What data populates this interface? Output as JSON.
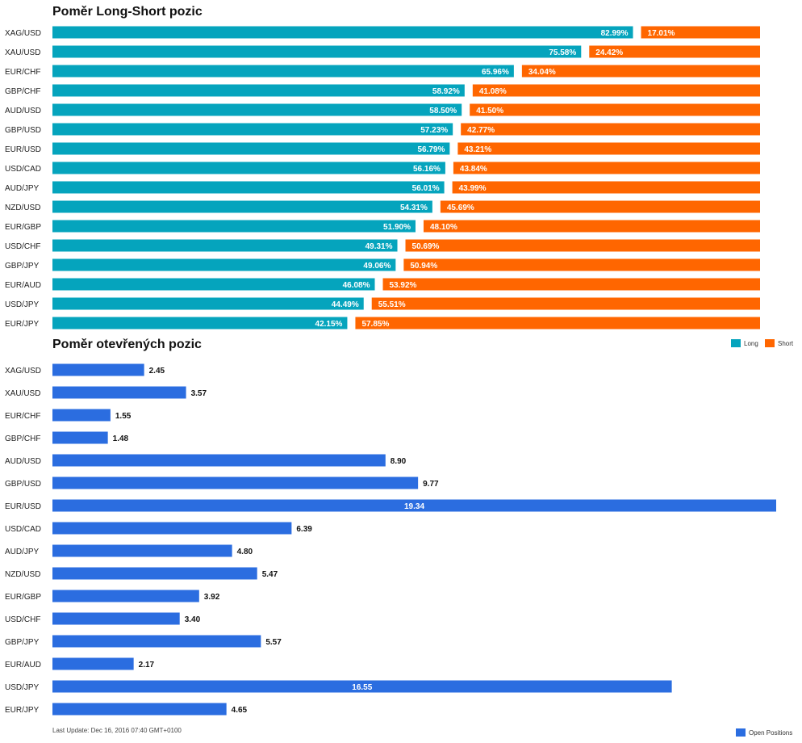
{
  "colors": {
    "long": "#05a4bd",
    "short": "#ff6600",
    "open": "#2b6de0"
  },
  "titles": {
    "long_short": "Poměr Long-Short pozic",
    "open": "Poměr otevřených pozic"
  },
  "legend": {
    "long": "Long",
    "short": "Short",
    "open": "Open Positions"
  },
  "footer": "Last Update: Dec 16, 2016 07:40 GMT+0100",
  "chart_data": [
    {
      "type": "bar",
      "orientation": "horizontal",
      "stacked": true,
      "title": "Poměr Long-Short pozic",
      "categories": [
        "XAG/USD",
        "XAU/USD",
        "EUR/CHF",
        "GBP/CHF",
        "AUD/USD",
        "GBP/USD",
        "EUR/USD",
        "USD/CAD",
        "AUD/JPY",
        "NZD/USD",
        "EUR/GBP",
        "USD/CHF",
        "GBP/JPY",
        "EUR/AUD",
        "USD/JPY",
        "EUR/JPY"
      ],
      "series": [
        {
          "name": "Long",
          "values": [
            82.99,
            75.58,
            65.96,
            58.92,
            58.5,
            57.23,
            56.79,
            56.16,
            56.01,
            54.31,
            51.9,
            49.31,
            49.06,
            46.08,
            44.49,
            42.15
          ],
          "labels": [
            "82.99%",
            "75.58%",
            "65.96%",
            "58.92%",
            "58.50%",
            "57.23%",
            "56.79%",
            "56.16%",
            "56.01%",
            "54.31%",
            "51.90%",
            "49.31%",
            "49.06%",
            "46.08%",
            "44.49%",
            "42.15%"
          ]
        },
        {
          "name": "Short",
          "values": [
            17.01,
            24.42,
            34.04,
            41.08,
            41.5,
            42.77,
            43.21,
            43.84,
            43.99,
            45.69,
            48.1,
            50.69,
            50.94,
            53.92,
            55.51,
            57.85
          ],
          "labels": [
            "17.01%",
            "24.42%",
            "34.04%",
            "41.08%",
            "41.50%",
            "42.77%",
            "43.21%",
            "43.84%",
            "43.99%",
            "45.69%",
            "48.10%",
            "50.69%",
            "50.94%",
            "53.92%",
            "55.51%",
            "57.85%"
          ]
        }
      ],
      "legend_position": "bottom-right"
    },
    {
      "type": "bar",
      "orientation": "horizontal",
      "title": "Poměr otevřených pozic",
      "categories": [
        "XAG/USD",
        "XAU/USD",
        "EUR/CHF",
        "GBP/CHF",
        "AUD/USD",
        "GBP/USD",
        "EUR/USD",
        "USD/CAD",
        "AUD/JPY",
        "NZD/USD",
        "EUR/GBP",
        "USD/CHF",
        "GBP/JPY",
        "EUR/AUD",
        "USD/JPY",
        "EUR/JPY"
      ],
      "series": [
        {
          "name": "Open Positions",
          "values": [
            2.45,
            3.57,
            1.55,
            1.48,
            8.9,
            9.77,
            19.34,
            6.39,
            4.8,
            5.47,
            3.92,
            3.4,
            5.57,
            2.17,
            16.55,
            4.65
          ],
          "labels": [
            "2.45",
            "3.57",
            "1.55",
            "1.48",
            "8.90",
            "9.77",
            "19.34",
            "6.39",
            "4.80",
            "5.47",
            "3.92",
            "3.40",
            "5.57",
            "2.17",
            "16.55",
            "4.65"
          ]
        }
      ],
      "legend_position": "bottom-right"
    }
  ]
}
